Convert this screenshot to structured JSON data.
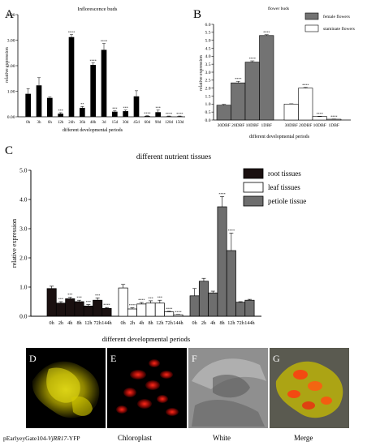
{
  "panel_letters": [
    "A",
    "B",
    "C",
    "D",
    "E",
    "F",
    "G"
  ],
  "micro": {
    "captions": [
      "pEarlyeyGate104-",
      "VjRR17",
      "-YFP",
      "Chloroplast",
      "White",
      "Merge"
    ],
    "colors": {
      "yfp": "#e0d400",
      "chloro": "#d81010",
      "white": "#9a9a9a",
      "bg": "#000000"
    }
  },
  "chart_data": [
    {
      "id": "A",
      "type": "bar",
      "title": "Inflorescence buds",
      "xlabel": "different developmental periods",
      "ylabel": "relative expression",
      "ylim": [
        0,
        4
      ],
      "yticks": [
        "0.00",
        "1.00",
        "2.00",
        "3.00",
        "4.00"
      ],
      "yticks_values": [
        0,
        1,
        2,
        3,
        4
      ],
      "categories": [
        "0h",
        "3h",
        "6h",
        "12h",
        "24h",
        "36h",
        "48h",
        "3d",
        "15d",
        "30d",
        "45d",
        "60d",
        "90d",
        "120d",
        "150d"
      ],
      "values": [
        0.9,
        1.23,
        0.74,
        0.12,
        3.12,
        0.35,
        2.03,
        2.62,
        0.2,
        0.22,
        0.8,
        0.03,
        0.18,
        0.02,
        0.02
      ],
      "errors": [
        0.2,
        0.3,
        0.03,
        0.04,
        0.1,
        0.05,
        0.08,
        0.25,
        0.03,
        0.04,
        0.22,
        0.01,
        0.08,
        0.01,
        0.01
      ],
      "significance": [
        "",
        "",
        "",
        "***",
        "****",
        "**",
        "****",
        "****",
        "***",
        "***",
        "",
        "****",
        "***",
        "****",
        "****"
      ],
      "bar_color": "#000000"
    },
    {
      "id": "B",
      "type": "bar",
      "title": "flower buds",
      "xlabel": "different developmental periods",
      "ylabel": "relative expression",
      "ylim": [
        0,
        6
      ],
      "yticks": [
        "0.0",
        "0.5",
        "1.0",
        "1.5",
        "2.0",
        "2.5",
        "3.0",
        "3.5",
        "4.0",
        "4.5",
        "5.0",
        "5.5",
        "6.0"
      ],
      "yticks_values": [
        0,
        0.5,
        1,
        1.5,
        2,
        2.5,
        3,
        3.5,
        4,
        4.5,
        5,
        5.5,
        6
      ],
      "series": [
        {
          "name": "female flowers",
          "color": "#737373",
          "categories": [
            "30DBF",
            "20DBF",
            "10DBF",
            "1DBF"
          ],
          "values": [
            0.93,
            2.33,
            3.63,
            5.3
          ],
          "errors": [
            0.05,
            0.1,
            0.08,
            0.05
          ],
          "significance": [
            "",
            "****",
            "****",
            "****"
          ]
        },
        {
          "name": "staminate flowers",
          "color": "#ffffff",
          "categories": [
            "30DBF",
            "20DBF",
            "10DBF",
            "1DBF"
          ],
          "values": [
            1.0,
            2.0,
            0.22,
            0.05
          ],
          "errors": [
            0.02,
            0.04,
            0.02,
            0.01
          ],
          "significance": [
            "",
            "****",
            "****",
            "****"
          ]
        }
      ],
      "legend": "top-right"
    },
    {
      "id": "C",
      "type": "bar",
      "title": "different nutrient tissues",
      "xlabel": "different developmental periods",
      "ylabel": "relative expression",
      "ylim": [
        0,
        5
      ],
      "yticks": [
        "0.0",
        "1.0",
        "2.0",
        "3.0",
        "4.0",
        "5.0"
      ],
      "yticks_values": [
        0,
        1,
        2,
        3,
        4,
        5
      ],
      "series": [
        {
          "name": "root tissues",
          "color": "#1a1010",
          "categories": [
            "0h",
            "2h",
            "4h",
            "8h",
            "12h",
            "72h",
            "144h"
          ],
          "values": [
            0.95,
            0.45,
            0.6,
            0.5,
            0.35,
            0.55,
            0.27
          ],
          "errors": [
            0.08,
            0.05,
            0.05,
            0.05,
            0.05,
            0.08,
            0.03
          ],
          "significance": [
            "",
            "***",
            "***",
            "***",
            "***",
            "***",
            "****"
          ]
        },
        {
          "name": "leaf tissues",
          "color": "#ffffff",
          "categories": [
            "0h",
            "2h",
            "4h",
            "8h",
            "12h",
            "72h",
            "144h"
          ],
          "values": [
            0.97,
            0.25,
            0.42,
            0.45,
            0.45,
            0.15,
            0.05
          ],
          "errors": [
            0.12,
            0.04,
            0.05,
            0.08,
            0.1,
            0.02,
            0.01
          ],
          "significance": [
            "",
            "****",
            "****",
            "***",
            "***",
            "****",
            "****"
          ]
        },
        {
          "name": "petiole tissue",
          "color": "#6e6e6e",
          "categories": [
            "0h",
            "2h",
            "4h",
            "8h",
            "12h",
            "72h",
            "144h"
          ],
          "values": [
            0.7,
            1.2,
            0.8,
            3.75,
            2.25,
            0.48,
            0.55
          ],
          "errors": [
            0.25,
            0.1,
            0.06,
            0.35,
            0.6,
            0.02,
            0.03
          ],
          "significance": [
            "",
            "",
            "",
            "****",
            "****",
            "",
            ""
          ]
        }
      ],
      "legend": "top-right"
    }
  ]
}
